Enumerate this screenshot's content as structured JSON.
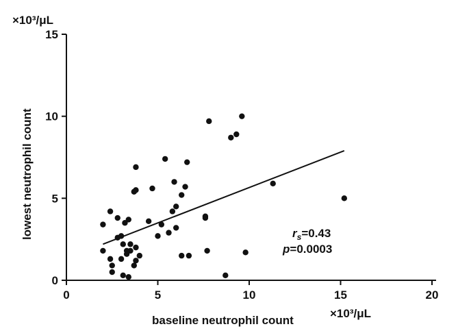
{
  "chart_data": {
    "type": "scatter",
    "title": "",
    "xlabel": "baseline neutrophil count",
    "ylabel": "lowest neutrophil count",
    "x_unit": "×10³/μL",
    "y_unit": "×10³/μL",
    "xlim": [
      0,
      20
    ],
    "ylim": [
      0,
      15
    ],
    "xticks": [
      "0",
      "5",
      "10",
      "15",
      "20"
    ],
    "yticks": [
      "0",
      "5",
      "10",
      "15"
    ],
    "grid": false,
    "legend": "none",
    "series": [
      {
        "points": [
          [
            2.0,
            1.8
          ],
          [
            2.0,
            3.4
          ],
          [
            2.4,
            4.2
          ],
          [
            2.4,
            1.3
          ],
          [
            2.5,
            0.9
          ],
          [
            2.5,
            0.5
          ],
          [
            2.8,
            3.8
          ],
          [
            2.8,
            2.6
          ],
          [
            3.0,
            2.7
          ],
          [
            3.0,
            1.3
          ],
          [
            3.1,
            2.2
          ],
          [
            3.1,
            0.3
          ],
          [
            3.2,
            3.5
          ],
          [
            3.3,
            1.8
          ],
          [
            3.3,
            1.6
          ],
          [
            3.4,
            3.7
          ],
          [
            3.4,
            0.2
          ],
          [
            3.5,
            2.2
          ],
          [
            3.5,
            1.8
          ],
          [
            3.7,
            5.4
          ],
          [
            3.7,
            0.9
          ],
          [
            3.8,
            6.9
          ],
          [
            3.8,
            5.5
          ],
          [
            3.8,
            2.0
          ],
          [
            3.8,
            1.2
          ],
          [
            4.0,
            1.5
          ],
          [
            4.5,
            3.6
          ],
          [
            4.7,
            5.6
          ],
          [
            5.0,
            2.7
          ],
          [
            5.2,
            3.4
          ],
          [
            5.4,
            7.4
          ],
          [
            5.6,
            2.9
          ],
          [
            5.8,
            4.2
          ],
          [
            5.9,
            6.0
          ],
          [
            6.0,
            3.2
          ],
          [
            6.0,
            4.5
          ],
          [
            6.3,
            1.5
          ],
          [
            6.3,
            5.2
          ],
          [
            6.5,
            5.7
          ],
          [
            6.6,
            7.2
          ],
          [
            6.7,
            1.5
          ],
          [
            7.6,
            3.9
          ],
          [
            7.6,
            3.8
          ],
          [
            7.7,
            1.8
          ],
          [
            7.8,
            9.7
          ],
          [
            8.7,
            0.3
          ],
          [
            9.0,
            8.7
          ],
          [
            9.3,
            8.9
          ],
          [
            9.6,
            10.0
          ],
          [
            9.8,
            1.7
          ],
          [
            11.3,
            5.9
          ],
          [
            15.2,
            5.0
          ]
        ]
      }
    ],
    "trend_line": {
      "x1": 2.0,
      "y1": 2.2,
      "x2": 15.2,
      "y2": 7.9
    },
    "annotation": {
      "rs_symbol": "r",
      "rs_sub": "s",
      "rs_value": "=0.43",
      "p_symbol": "p",
      "p_value": "=0.0003"
    }
  }
}
